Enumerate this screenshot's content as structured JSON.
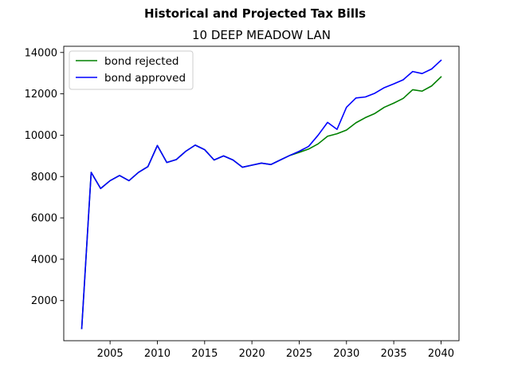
{
  "chart_data": {
    "type": "line",
    "suptitle": "Historical and Projected Tax Bills",
    "title": "10 DEEP MEADOW LAN",
    "xlabel": "",
    "ylabel": "",
    "xlim": [
      2000.1,
      2041.9
    ],
    "ylim": [
      60,
      14300
    ],
    "xticks": [
      2005,
      2010,
      2015,
      2020,
      2025,
      2030,
      2035,
      2040
    ],
    "yticks": [
      2000,
      4000,
      6000,
      8000,
      10000,
      12000,
      14000
    ],
    "grid": false,
    "legend": "upper-left",
    "series": [
      {
        "name": "bond rejected",
        "color": "#008000",
        "x": [
          2002,
          2003,
          2004,
          2005,
          2006,
          2007,
          2008,
          2009,
          2010,
          2011,
          2012,
          2013,
          2014,
          2015,
          2016,
          2017,
          2018,
          2019,
          2020,
          2021,
          2022,
          2023,
          2024,
          2025,
          2026,
          2027,
          2028,
          2029,
          2030,
          2031,
          2032,
          2033,
          2034,
          2035,
          2036,
          2037,
          2038,
          2039,
          2040
        ],
        "values": [
          650,
          8200,
          7420,
          7800,
          8050,
          7800,
          8200,
          8480,
          9500,
          8680,
          8820,
          9220,
          9520,
          9300,
          8800,
          9000,
          8800,
          8450,
          8550,
          8650,
          8580,
          8800,
          9020,
          9170,
          9330,
          9580,
          9950,
          10070,
          10250,
          10600,
          10850,
          11050,
          11350,
          11550,
          11780,
          12200,
          12130,
          12380,
          12820
        ]
      },
      {
        "name": "bond approved",
        "color": "#0000ff",
        "x": [
          2002,
          2003,
          2004,
          2005,
          2006,
          2007,
          2008,
          2009,
          2010,
          2011,
          2012,
          2013,
          2014,
          2015,
          2016,
          2017,
          2018,
          2019,
          2020,
          2021,
          2022,
          2023,
          2024,
          2025,
          2026,
          2027,
          2028,
          2029,
          2030,
          2031,
          2032,
          2033,
          2034,
          2035,
          2036,
          2037,
          2038,
          2039,
          2040
        ],
        "values": [
          650,
          8200,
          7420,
          7800,
          8050,
          7800,
          8200,
          8480,
          9500,
          8680,
          8820,
          9220,
          9520,
          9300,
          8800,
          9000,
          8800,
          8450,
          8550,
          8650,
          8580,
          8800,
          9020,
          9220,
          9460,
          10000,
          10620,
          10280,
          11350,
          11800,
          11850,
          12030,
          12300,
          12480,
          12680,
          13080,
          12980,
          13200,
          13620
        ]
      }
    ]
  }
}
